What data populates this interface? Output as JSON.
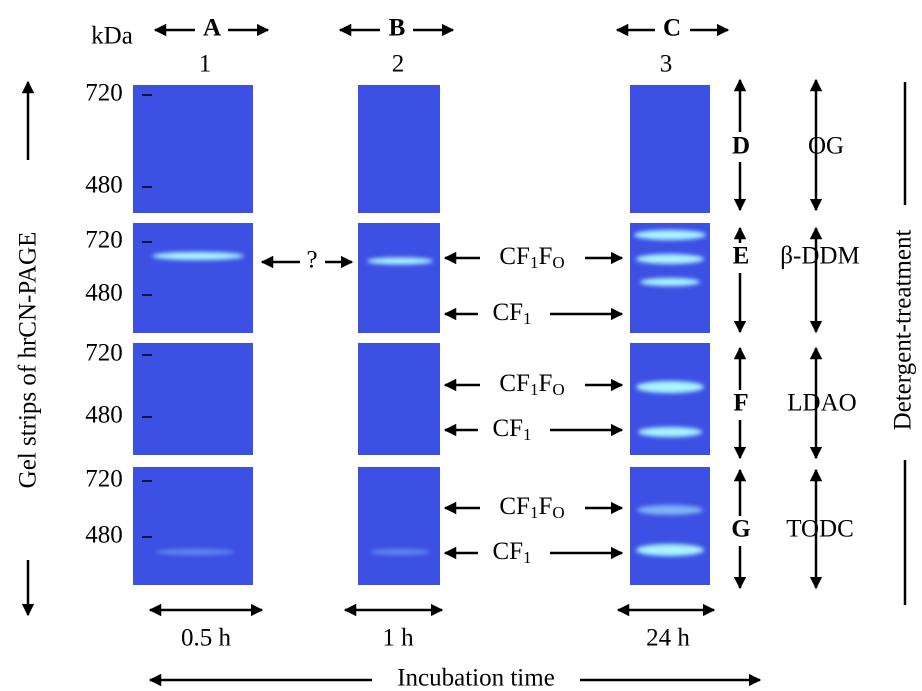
{
  "unit": "kDa",
  "axis_label_left": "Gel strips of hrCN-PAGE",
  "axis_label_right": "Detergent-treatment",
  "axis_label_bottom": "Incubation time",
  "columns": [
    {
      "letter": "A",
      "lane": "1",
      "time": "0.5 h"
    },
    {
      "letter": "B",
      "lane": "2",
      "time": "1 h"
    },
    {
      "letter": "C",
      "lane": "3",
      "time": "24 h"
    }
  ],
  "rows": [
    {
      "letter": "D",
      "detergent": "OG",
      "markers": [
        720,
        480
      ]
    },
    {
      "letter": "E",
      "detergent": "β-DDM",
      "markers": [
        720,
        480
      ],
      "unknown": "?",
      "upper": {
        "base": "CF",
        "sub1": "1",
        "mid": "F",
        "sub2": "O"
      },
      "lower": {
        "base": "CF",
        "sub": "1"
      }
    },
    {
      "letter": "F",
      "detergent": "LDAO",
      "markers": [
        720,
        480
      ],
      "upper": {
        "base": "CF",
        "sub1": "1",
        "mid": "F",
        "sub2": "O"
      },
      "lower": {
        "base": "CF",
        "sub": "1"
      }
    },
    {
      "letter": "G",
      "detergent": "TODC",
      "markers": [
        720,
        480
      ],
      "upper": {
        "base": "CF",
        "sub1": "1",
        "mid": "F",
        "sub2": "O"
      },
      "lower": {
        "base": "CF",
        "sub": "1"
      }
    }
  ]
}
